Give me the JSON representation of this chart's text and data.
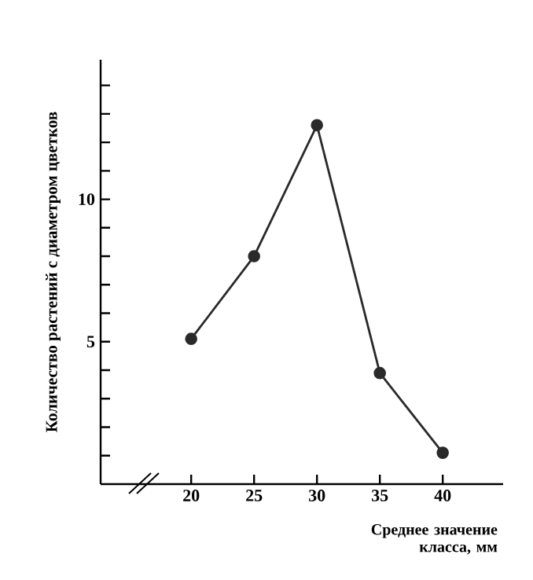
{
  "chart_data": {
    "type": "line",
    "xlabel": "Среднее значение класса, мм",
    "ylabel": "Количество растений с диаметром цветков",
    "x": [
      20,
      25,
      30,
      35,
      40
    ],
    "values": [
      5.1,
      8,
      12.6,
      3.9,
      1.1
    ],
    "color": "#2a2a2a",
    "marker": "circle",
    "line_style": "solid",
    "xlim": [
      12.8,
      44.8
    ],
    "xticks": [
      20,
      25,
      30,
      35,
      40
    ],
    "ylim": [
      0,
      14.9
    ],
    "yticks": [
      {
        "value": 1,
        "label": null
      },
      {
        "value": 2,
        "label": null
      },
      {
        "value": 3,
        "label": null
      },
      {
        "value": 4,
        "label": null
      },
      5,
      {
        "value": 6,
        "label": null
      },
      {
        "value": 7,
        "label": null
      },
      {
        "value": 8,
        "label": null
      },
      {
        "value": 9,
        "label": null
      },
      10,
      {
        "value": 11,
        "label": null
      },
      {
        "value": 12,
        "label": null
      },
      {
        "value": 13,
        "label": null
      },
      {
        "value": 14,
        "label": null
      }
    ]
  }
}
